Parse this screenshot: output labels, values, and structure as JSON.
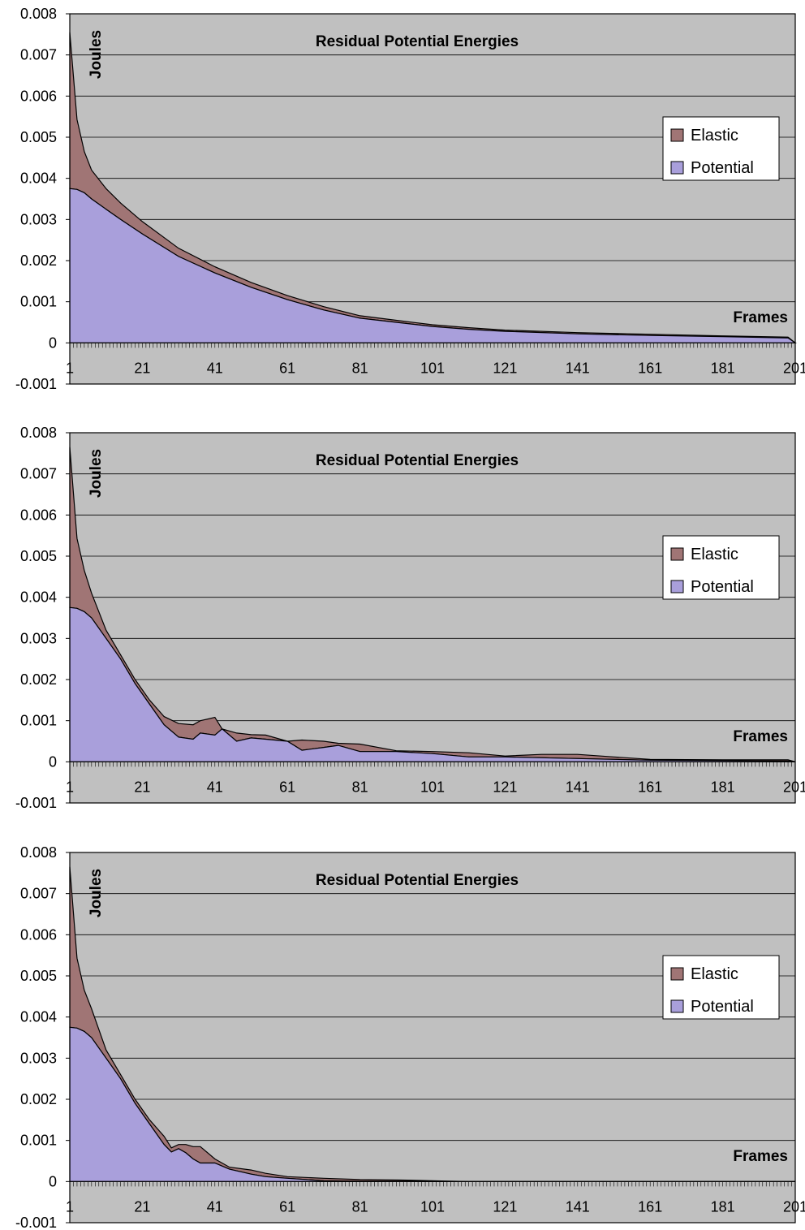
{
  "chart_data": [
    {
      "type": "area",
      "stacked": true,
      "title": "Residual Potential Energies",
      "ylabel": "Joules",
      "xlabel": "Frames",
      "ylim": [
        -0.001,
        0.008
      ],
      "yticks": [
        "-0.001",
        "0",
        "0.001",
        "0.002",
        "0.003",
        "0.004",
        "0.005",
        "0.006",
        "0.007",
        "0.008"
      ],
      "xticks": [
        "1",
        "21",
        "41",
        "61",
        "81",
        "101",
        "121",
        "141",
        "161",
        "181",
        "201"
      ],
      "xlim": [
        1,
        201
      ],
      "grid": true,
      "legend": "right",
      "legend_entries": [
        "Elastic",
        "Potential"
      ],
      "series": [
        {
          "name": "Potential",
          "color": "#a99fdb",
          "x": [
            1,
            3,
            5,
            7,
            11,
            15,
            21,
            31,
            41,
            51,
            61,
            71,
            81,
            91,
            101,
            111,
            121,
            141,
            161,
            181,
            199,
            201
          ],
          "values": [
            0.00375,
            0.00373,
            0.00365,
            0.0035,
            0.00325,
            0.003,
            0.00265,
            0.0021,
            0.0017,
            0.00135,
            0.00105,
            0.0008,
            0.0006,
            0.0005,
            0.0004,
            0.00033,
            0.00028,
            0.00022,
            0.00018,
            0.00015,
            0.00012,
            0.0
          ]
        },
        {
          "name": "Elastic",
          "color": "#a07575",
          "x": [
            1,
            3,
            5,
            7,
            11,
            15,
            21,
            31,
            41,
            51,
            61,
            71,
            81,
            91,
            101,
            111,
            121,
            141,
            161,
            181,
            199,
            201
          ],
          "values": [
            0.0038,
            0.0017,
            0.001,
            0.0007,
            0.0005,
            0.0004,
            0.0003,
            0.0002,
            0.00015,
            0.00012,
            0.0001,
            8e-05,
            6e-05,
            5e-05,
            4e-05,
            4e-05,
            3e-05,
            3e-05,
            3e-05,
            2e-05,
            2e-05,
            0.0
          ]
        }
      ]
    },
    {
      "type": "area",
      "stacked": true,
      "title": "Residual Potential Energies",
      "ylabel": "Joules",
      "xlabel": "Frames",
      "ylim": [
        -0.001,
        0.008
      ],
      "yticks": [
        "-0.001",
        "0",
        "0.001",
        "0.002",
        "0.003",
        "0.004",
        "0.005",
        "0.006",
        "0.007",
        "0.008"
      ],
      "xticks": [
        "1",
        "21",
        "41",
        "61",
        "81",
        "101",
        "121",
        "141",
        "161",
        "181",
        "201"
      ],
      "xlim": [
        1,
        201
      ],
      "grid": true,
      "legend": "right",
      "legend_entries": [
        "Elastic",
        "Potential"
      ],
      "series": [
        {
          "name": "Potential",
          "color": "#a99fdb",
          "x": [
            1,
            3,
            5,
            7,
            11,
            15,
            19,
            23,
            27,
            31,
            35,
            37,
            41,
            43,
            47,
            51,
            55,
            61,
            65,
            71,
            75,
            81,
            91,
            101,
            111,
            121,
            131,
            141,
            151,
            161,
            181,
            199,
            201
          ],
          "values": [
            0.00375,
            0.00373,
            0.00365,
            0.0035,
            0.003,
            0.0025,
            0.0019,
            0.0014,
            0.0009,
            0.0006,
            0.00055,
            0.0007,
            0.00065,
            0.0008,
            0.0005,
            0.00058,
            0.00055,
            0.0005,
            0.00028,
            0.00035,
            0.0004,
            0.00025,
            0.00025,
            0.0002,
            0.00012,
            0.00012,
            0.0001,
            8e-05,
            6e-05,
            4e-05,
            3e-05,
            2e-05,
            0.0
          ]
        },
        {
          "name": "Elastic",
          "color": "#a07575",
          "x": [
            1,
            3,
            5,
            7,
            11,
            15,
            19,
            23,
            27,
            31,
            35,
            37,
            41,
            43,
            47,
            51,
            55,
            61,
            65,
            71,
            75,
            81,
            91,
            101,
            111,
            121,
            131,
            141,
            151,
            161,
            181,
            199,
            201
          ],
          "values": [
            0.0039,
            0.0017,
            0.001,
            0.0006,
            0.0002,
            0.0001,
            0.0001,
            0.0001,
            0.0002,
            0.00033,
            0.00035,
            0.0003,
            0.00043,
            0.0,
            0.0002,
            8e-05,
            0.0001,
            0.0,
            0.00025,
            0.00015,
            5e-05,
            0.00018,
            2e-05,
            5e-05,
            0.0001,
            2e-05,
            8e-05,
            0.0001,
            6e-05,
            2e-05,
            2e-05,
            3e-05,
            0.0
          ]
        }
      ]
    },
    {
      "type": "area",
      "stacked": true,
      "title": "Residual Potential Energies",
      "ylabel": "Joules",
      "xlabel": "Frames",
      "ylim": [
        -0.001,
        0.008
      ],
      "yticks": [
        "-0.001",
        "0",
        "0.001",
        "0.002",
        "0.003",
        "0.004",
        "0.005",
        "0.006",
        "0.007",
        "0.008"
      ],
      "xticks": [
        "1",
        "21",
        "41",
        "61",
        "81",
        "101",
        "121",
        "141",
        "161",
        "181",
        "201"
      ],
      "xlim": [
        1,
        201
      ],
      "grid": true,
      "legend": "right",
      "legend_entries": [
        "Elastic",
        "Potential"
      ],
      "series": [
        {
          "name": "Potential",
          "color": "#a99fdb",
          "x": [
            1,
            3,
            5,
            7,
            11,
            15,
            19,
            23,
            27,
            29,
            31,
            33,
            35,
            37,
            41,
            45,
            51,
            55,
            61,
            71,
            81,
            91,
            101,
            111,
            201
          ],
          "values": [
            0.00375,
            0.00373,
            0.00365,
            0.0035,
            0.003,
            0.0025,
            0.0019,
            0.0014,
            0.0009,
            0.00072,
            0.0008,
            0.0007,
            0.00055,
            0.00045,
            0.00045,
            0.0003,
            0.00018,
            0.00012,
            8e-05,
            2e-05,
            1e-05,
            1e-05,
            0.0,
            0.0,
            0.0
          ]
        },
        {
          "name": "Elastic",
          "color": "#a07575",
          "x": [
            1,
            3,
            5,
            7,
            11,
            15,
            19,
            23,
            27,
            29,
            31,
            33,
            35,
            37,
            41,
            45,
            51,
            55,
            61,
            71,
            81,
            91,
            101,
            111,
            201
          ],
          "values": [
            0.0039,
            0.0017,
            0.001,
            0.0007,
            0.0002,
            0.0001,
            0.0001,
            0.0001,
            0.0002,
            0.0001,
            0.0001,
            0.0002,
            0.0003,
            0.0004,
            0.0001,
            5e-05,
            0.0001,
            8e-05,
            4e-05,
            6e-05,
            4e-05,
            3e-05,
            2e-05,
            0.0,
            0.0
          ]
        }
      ]
    }
  ]
}
